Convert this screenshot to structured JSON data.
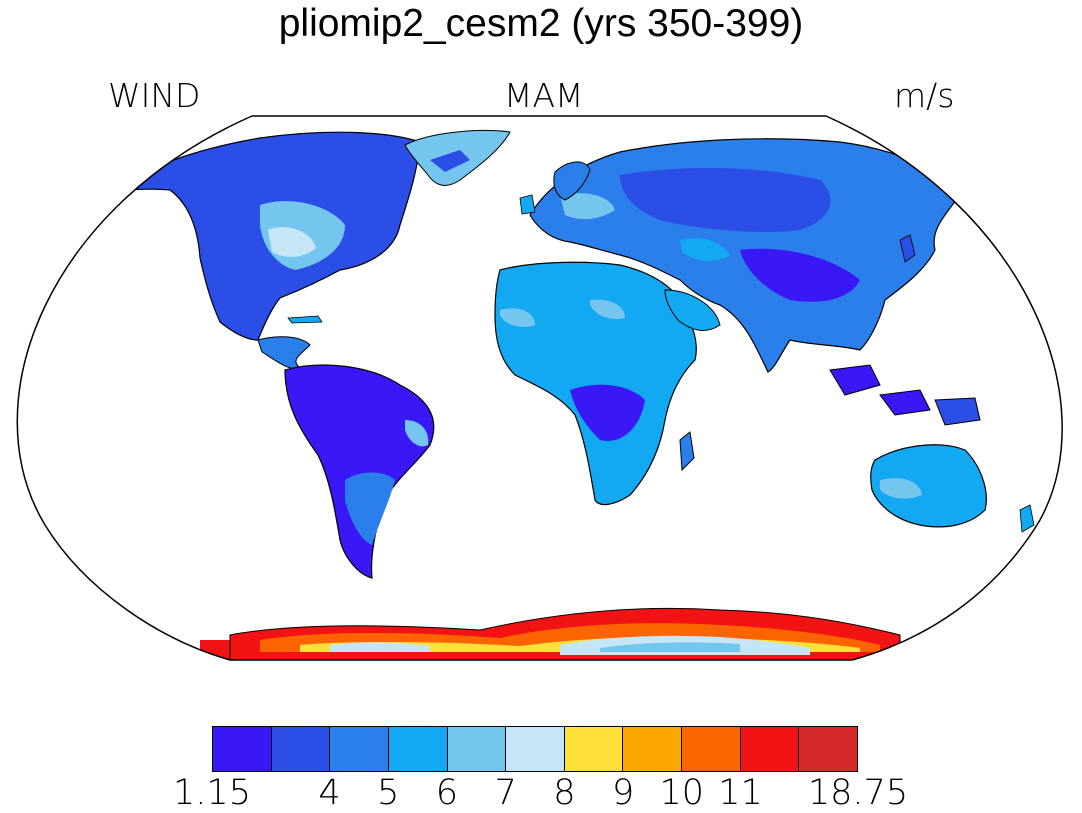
{
  "title": "pliomip2_cesm2 (yrs 350-399)",
  "left_label": "WIND",
  "center_label": "MAM",
  "units_label": "m/s",
  "map": {
    "projection": "Robinson",
    "ocean_color": "#ffffff",
    "coastline_color": "#000000",
    "regions": [
      {
        "name": "North America",
        "level": "blue"
      },
      {
        "name": "Greenland",
        "level": "light-blue"
      },
      {
        "name": "South America",
        "level": "violet"
      },
      {
        "name": "Europe and Asia",
        "level": "blue"
      },
      {
        "name": "Africa",
        "level": "sky-blue"
      },
      {
        "name": "Australia",
        "level": "sky-blue"
      },
      {
        "name": "Antarctica",
        "level": "red"
      }
    ]
  },
  "colorbar": {
    "colors": [
      "#3a18f6",
      "#2a4ee6",
      "#2a7fea",
      "#12a8f2",
      "#74c6ee",
      "#c6e6f7",
      "#fde03a",
      "#fca800",
      "#fc6400",
      "#f21414",
      "#d42a2a"
    ],
    "tick_labels": [
      "1.15",
      "4",
      "5",
      "6",
      "7",
      "8",
      "9",
      "10",
      "11",
      "18.75"
    ]
  }
}
